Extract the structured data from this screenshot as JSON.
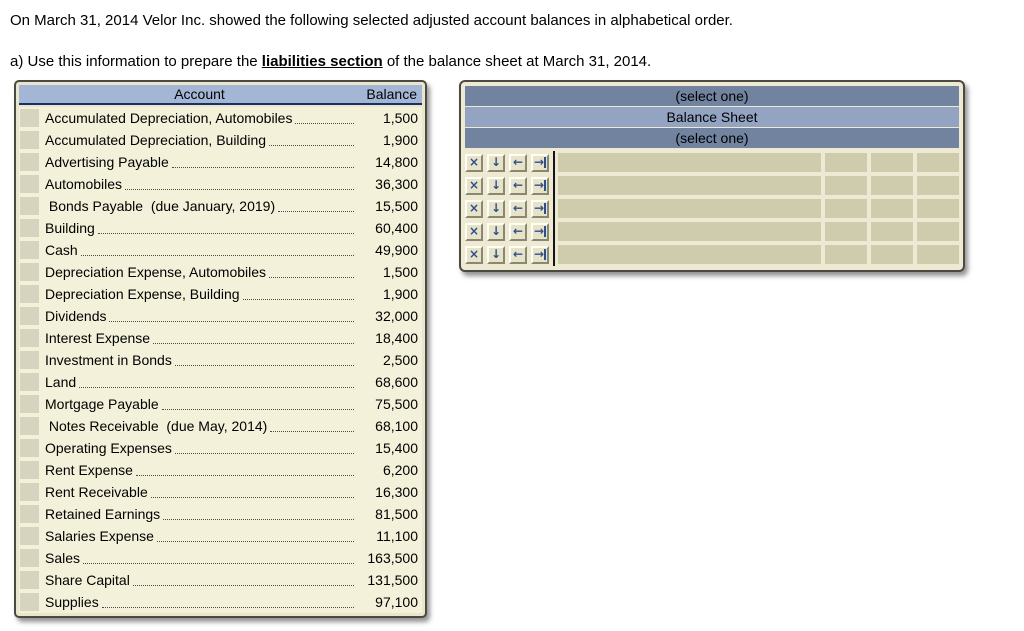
{
  "intro": {
    "line1": "On March 31, 2014 Velor Inc. showed the following selected adjusted account balances in alphabetical order.",
    "line2_prefix": "a) Use this information to prepare the ",
    "line2_emphasis": "liabilities section",
    "line2_suffix": " of the balance sheet at March 31, 2014."
  },
  "account_table": {
    "header": {
      "account": "Account",
      "balance": "Balance"
    },
    "rows": [
      {
        "name": "Accumulated Depreciation, Automobiles",
        "balance": "1,500"
      },
      {
        "name": "Accumulated Depreciation, Building",
        "balance": "1,900"
      },
      {
        "name": "Advertising Payable",
        "balance": "14,800"
      },
      {
        "name": "Automobiles",
        "balance": "36,300"
      },
      {
        "name": " Bonds Payable  (due January, 2019)",
        "balance": "15,500"
      },
      {
        "name": "Building",
        "balance": "60,400"
      },
      {
        "name": "Cash",
        "balance": "49,900"
      },
      {
        "name": "Depreciation Expense, Automobiles",
        "balance": "1,500"
      },
      {
        "name": "Depreciation Expense, Building",
        "balance": "1,900"
      },
      {
        "name": "Dividends",
        "balance": "32,000"
      },
      {
        "name": "Interest Expense",
        "balance": "18,400"
      },
      {
        "name": "Investment in Bonds",
        "balance": "2,500"
      },
      {
        "name": "Land",
        "balance": "68,600"
      },
      {
        "name": "Mortgage Payable",
        "balance": "75,500"
      },
      {
        "name": " Notes Receivable  (due May, 2014)",
        "balance": "68,100"
      },
      {
        "name": "Operating Expenses",
        "balance": "15,400"
      },
      {
        "name": "Rent Expense",
        "balance": "6,200"
      },
      {
        "name": "Rent Receivable",
        "balance": "16,300"
      },
      {
        "name": "Retained Earnings",
        "balance": "81,500"
      },
      {
        "name": "Salaries Expense",
        "balance": "11,100"
      },
      {
        "name": "Sales",
        "balance": "163,500"
      },
      {
        "name": "Share Capital",
        "balance": "131,500"
      },
      {
        "name": "Supplies",
        "balance": "97,100"
      }
    ]
  },
  "builder": {
    "select_top": "(select one)",
    "title": "Balance Sheet",
    "select_bottom": "(select one)",
    "row_count": 5,
    "icons": {
      "delete": "×",
      "move_down": "↓",
      "move_left": "←",
      "move_right": "→"
    }
  },
  "colors": {
    "table_header_blue": "#a4b6d6",
    "header_underline_navy": "#1c2f63",
    "row_background": "#f3f1da",
    "frame_beige": "#e9e6cd",
    "builder_bar_dark": "#71839f",
    "builder_bar_light": "#92a4c2",
    "input_field_beige": "#cfccae",
    "icon_glyph_navy": "#2d4e8e"
  }
}
